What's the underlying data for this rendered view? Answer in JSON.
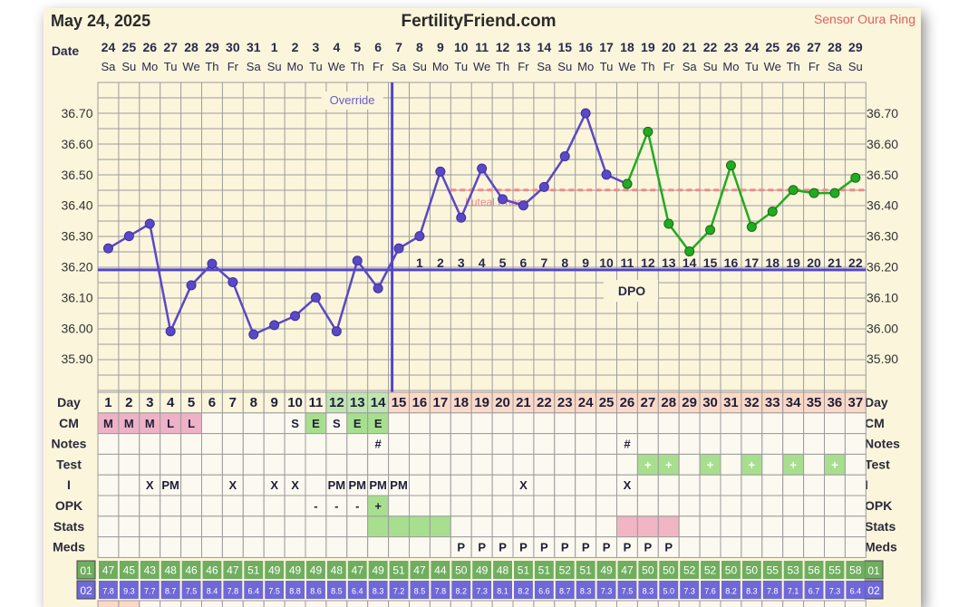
{
  "header": {
    "date": "May 24, 2025",
    "site": "FertilityFriend.com",
    "sensor": "Sensor Oura Ring"
  },
  "labels": {
    "date_row": "Date",
    "override": "Override",
    "coverline": "Luteal Phase",
    "dpo": "DPO",
    "day": "Day",
    "cm": "CM",
    "notes": "Notes",
    "test": "Test",
    "i": "I",
    "opk": "OPK",
    "stats": "Stats",
    "meds": "Meds"
  },
  "colors": {
    "temp_line": "#5b48c4",
    "luteal_line": "#22aa22",
    "coverline": "#5046c8",
    "luteal_phase": "#ef8b8b",
    "grid": "#9c9c9c",
    "cm_menses": "#eeb2c6",
    "cm_fertile": "#a7df8f",
    "day_fertile": "#bfe6b2",
    "day_luteal": "#fbd9c7",
    "stats_green": "#a7df8f",
    "stats_pink": "#f1b5c4",
    "green_badge": "#6fae5e",
    "blue_badge": "#6e68d8"
  },
  "calendar": {
    "dates": [
      "24",
      "25",
      "26",
      "27",
      "28",
      "29",
      "30",
      "31",
      "1",
      "2",
      "3",
      "4",
      "5",
      "6",
      "7",
      "8",
      "9",
      "10",
      "11",
      "12",
      "13",
      "14",
      "15",
      "16",
      "17",
      "18",
      "19",
      "20",
      "21",
      "22",
      "23",
      "24",
      "25",
      "26",
      "27",
      "28",
      "29"
    ],
    "weekdays": [
      "Sa",
      "Su",
      "Mo",
      "Tu",
      "We",
      "Th",
      "Fr",
      "Sa",
      "Su",
      "Mo",
      "Tu",
      "We",
      "Th",
      "Fr",
      "Sa",
      "Su",
      "Mo",
      "Tu",
      "We",
      "Th",
      "Fr",
      "Sa",
      "Su",
      "Mo",
      "Tu",
      "We",
      "Th",
      "Fr",
      "Sa",
      "Su",
      "Mo",
      "Tu",
      "We",
      "Th",
      "Fr",
      "Sa",
      "Su"
    ]
  },
  "chart_data": {
    "type": "line",
    "ylim": [
      35.8,
      36.8
    ],
    "yticks": [
      "36.70",
      "36.60",
      "36.50",
      "36.40",
      "36.30",
      "36.20",
      "36.10",
      "36.00",
      "35.90"
    ],
    "x": [
      1,
      2,
      3,
      4,
      5,
      6,
      7,
      8,
      9,
      10,
      11,
      12,
      13,
      14,
      15,
      16,
      17,
      18,
      19,
      20,
      21,
      22,
      23,
      24,
      25,
      26,
      27,
      28,
      29,
      30,
      31,
      32,
      33,
      34,
      35,
      36,
      37
    ],
    "series": [
      {
        "values": [
          36.26,
          36.3,
          36.34,
          35.99,
          36.14,
          36.21,
          36.15,
          35.98,
          36.01,
          36.04,
          36.1,
          35.99,
          36.22,
          36.13,
          36.26,
          36.3,
          36.51,
          36.36,
          36.52,
          36.42,
          36.4,
          36.46,
          36.56,
          36.7,
          36.5,
          36.47,
          null,
          null,
          null,
          null,
          null,
          null,
          null,
          null,
          null,
          null,
          null
        ]
      },
      {
        "values": [
          null,
          null,
          null,
          null,
          null,
          null,
          null,
          null,
          null,
          null,
          null,
          null,
          null,
          null,
          null,
          null,
          null,
          null,
          null,
          null,
          null,
          null,
          null,
          null,
          null,
          36.47,
          36.64,
          36.34,
          36.25,
          36.32,
          36.53,
          36.33,
          36.38,
          36.45,
          36.44,
          36.44,
          36.49
        ]
      }
    ],
    "coverline": 36.19,
    "luteal_phase": 36.45,
    "ovulation_day": 15,
    "dpo": [
      "1",
      "2",
      "3",
      "4",
      "5",
      "6",
      "7",
      "8",
      "9",
      "10",
      "11",
      "12",
      "13",
      "14",
      "15",
      "16",
      "17",
      "18",
      "19",
      "20",
      "21",
      "22"
    ],
    "days": [
      "1",
      "2",
      "3",
      "4",
      "5",
      "6",
      "7",
      "8",
      "9",
      "10",
      "11",
      "12",
      "13",
      "14",
      "15",
      "16",
      "17",
      "18",
      "19",
      "20",
      "21",
      "22",
      "23",
      "24",
      "25",
      "26",
      "27",
      "28",
      "29",
      "30",
      "31",
      "32",
      "33",
      "34",
      "35",
      "36",
      "37"
    ],
    "cm": [
      "M",
      "M",
      "M",
      "L",
      "L",
      "",
      "",
      "",
      "",
      "S",
      "E",
      "S",
      "E",
      "E",
      "",
      "",
      "",
      "",
      "",
      "",
      "",
      "",
      "",
      "",
      "",
      "",
      "",
      "",
      "",
      "",
      "",
      "",
      "",
      "",
      "",
      "",
      ""
    ],
    "notes": [
      "",
      "",
      "",
      "",
      "",
      "",
      "",
      "",
      "",
      "",
      "",
      "",
      "",
      "#",
      "",
      "",
      "",
      "",
      "",
      "",
      "",
      "",
      "",
      "",
      "",
      "#",
      "",
      "",
      "",
      "",
      "",
      "",
      "",
      "",
      "",
      "",
      ""
    ],
    "tests": [
      "",
      "",
      "",
      "",
      "",
      "",
      "",
      "",
      "",
      "",
      "",
      "",
      "",
      "",
      "",
      "",
      "",
      "",
      "",
      "",
      "",
      "",
      "",
      "",
      "",
      "",
      "+",
      "+",
      "",
      "+",
      "",
      "+",
      "",
      "+",
      "",
      "+",
      ""
    ],
    "intercourse": [
      "",
      "",
      "X",
      "PM",
      "",
      "",
      "X",
      "",
      "X",
      "X",
      "",
      "PM",
      "PM",
      "PM",
      "PM",
      "",
      "",
      "",
      "",
      "",
      "X",
      "",
      "",
      "",
      "",
      "X",
      "",
      "",
      "",
      "",
      "",
      "",
      "",
      "",
      "",
      "",
      ""
    ],
    "opk": [
      "",
      "",
      "",
      "",
      "",
      "",
      "",
      "",
      "",
      "",
      "-",
      "-",
      "-",
      "+",
      "",
      "",
      "",
      "",
      "",
      "",
      "",
      "",
      "",
      "",
      "",
      "",
      "",
      "",
      "",
      "",
      "",
      "",
      "",
      "",
      "",
      "",
      ""
    ],
    "stats": [
      "",
      "",
      "",
      "",
      "",
      "",
      "",
      "",
      "",
      "",
      "",
      "",
      "",
      "green",
      "green",
      "green",
      "green",
      "",
      "",
      "",
      "",
      "",
      "",
      "",
      "",
      "pink",
      "pink",
      "pink",
      "",
      "",
      "",
      "",
      "",
      "",
      "",
      "",
      ""
    ],
    "meds": [
      "",
      "",
      "",
      "",
      "",
      "",
      "",
      "",
      "",
      "",
      "",
      "",
      "",
      "",
      "",
      "",
      "",
      "P",
      "P",
      "P",
      "P",
      "P",
      "P",
      "P",
      "P",
      "P",
      "P",
      "P",
      "",
      "",
      "",
      "",
      "",
      "",
      "",
      "",
      ""
    ],
    "row_01": {
      "label": "01",
      "values": [
        "47",
        "45",
        "43",
        "48",
        "46",
        "46",
        "47",
        "51",
        "49",
        "49",
        "49",
        "48",
        "47",
        "49",
        "51",
        "47",
        "44",
        "50",
        "49",
        "48",
        "51",
        "51",
        "52",
        "51",
        "49",
        "47",
        "50",
        "50",
        "52",
        "52",
        "50",
        "50",
        "55",
        "53",
        "56",
        "55",
        "58"
      ]
    },
    "row_02": {
      "label": "02",
      "values": [
        "7.8",
        "9.3",
        "7.7",
        "8.7",
        "7.5",
        "8.4",
        "7.8",
        "6.4",
        "7.5",
        "8.8",
        "8.6",
        "8.5",
        "6.4",
        "8.3",
        "7.2",
        "8.5",
        "7.8",
        "8.2",
        "7.3",
        "8.1",
        "8.2",
        "6.6",
        "8.7",
        "8.3",
        "7.3",
        "7.5",
        "8.3",
        "5.0",
        "7.3",
        "7.6",
        "8.2",
        "8.3",
        "7.8",
        "7.1",
        "6.7",
        "7.3",
        "6.4"
      ]
    }
  }
}
